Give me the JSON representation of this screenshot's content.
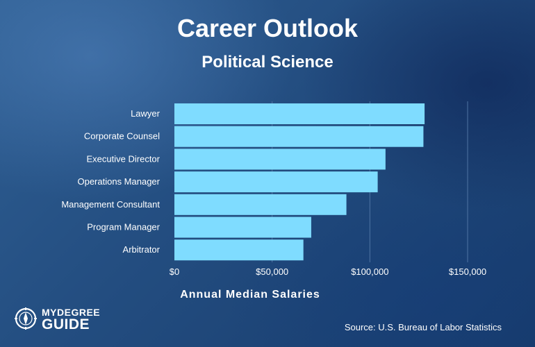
{
  "colors": {
    "bar": "#7fdcff",
    "grid": "#4f74a3",
    "text": "#ffffff"
  },
  "chart_data": {
    "type": "bar",
    "orientation": "horizontal",
    "title": "Career Outlook",
    "subtitle": "Political Science",
    "xlabel": "Annual Median Salaries",
    "ylabel": "",
    "categories": [
      "Lawyer",
      "Corporate Counsel",
      "Executive Director",
      "Operations Manager",
      "Management Consultant",
      "Program Manager",
      "Arbitrator"
    ],
    "values": [
      127990,
      127400,
      108000,
      104000,
      88000,
      70000,
      66000
    ],
    "xlim": [
      0,
      150000
    ],
    "x_ticks": [
      0,
      50000,
      100000,
      150000
    ],
    "x_tick_labels": [
      "$0",
      "$50,000",
      "$100,000",
      "$150,000"
    ],
    "grid": true,
    "legend": "none"
  },
  "footer": {
    "source": "Source: U.S. Bureau of Labor Statistics",
    "logo_top": "MYDEGREE",
    "logo_bottom": "GUIDE",
    "logo_icon": "compass-icon"
  }
}
